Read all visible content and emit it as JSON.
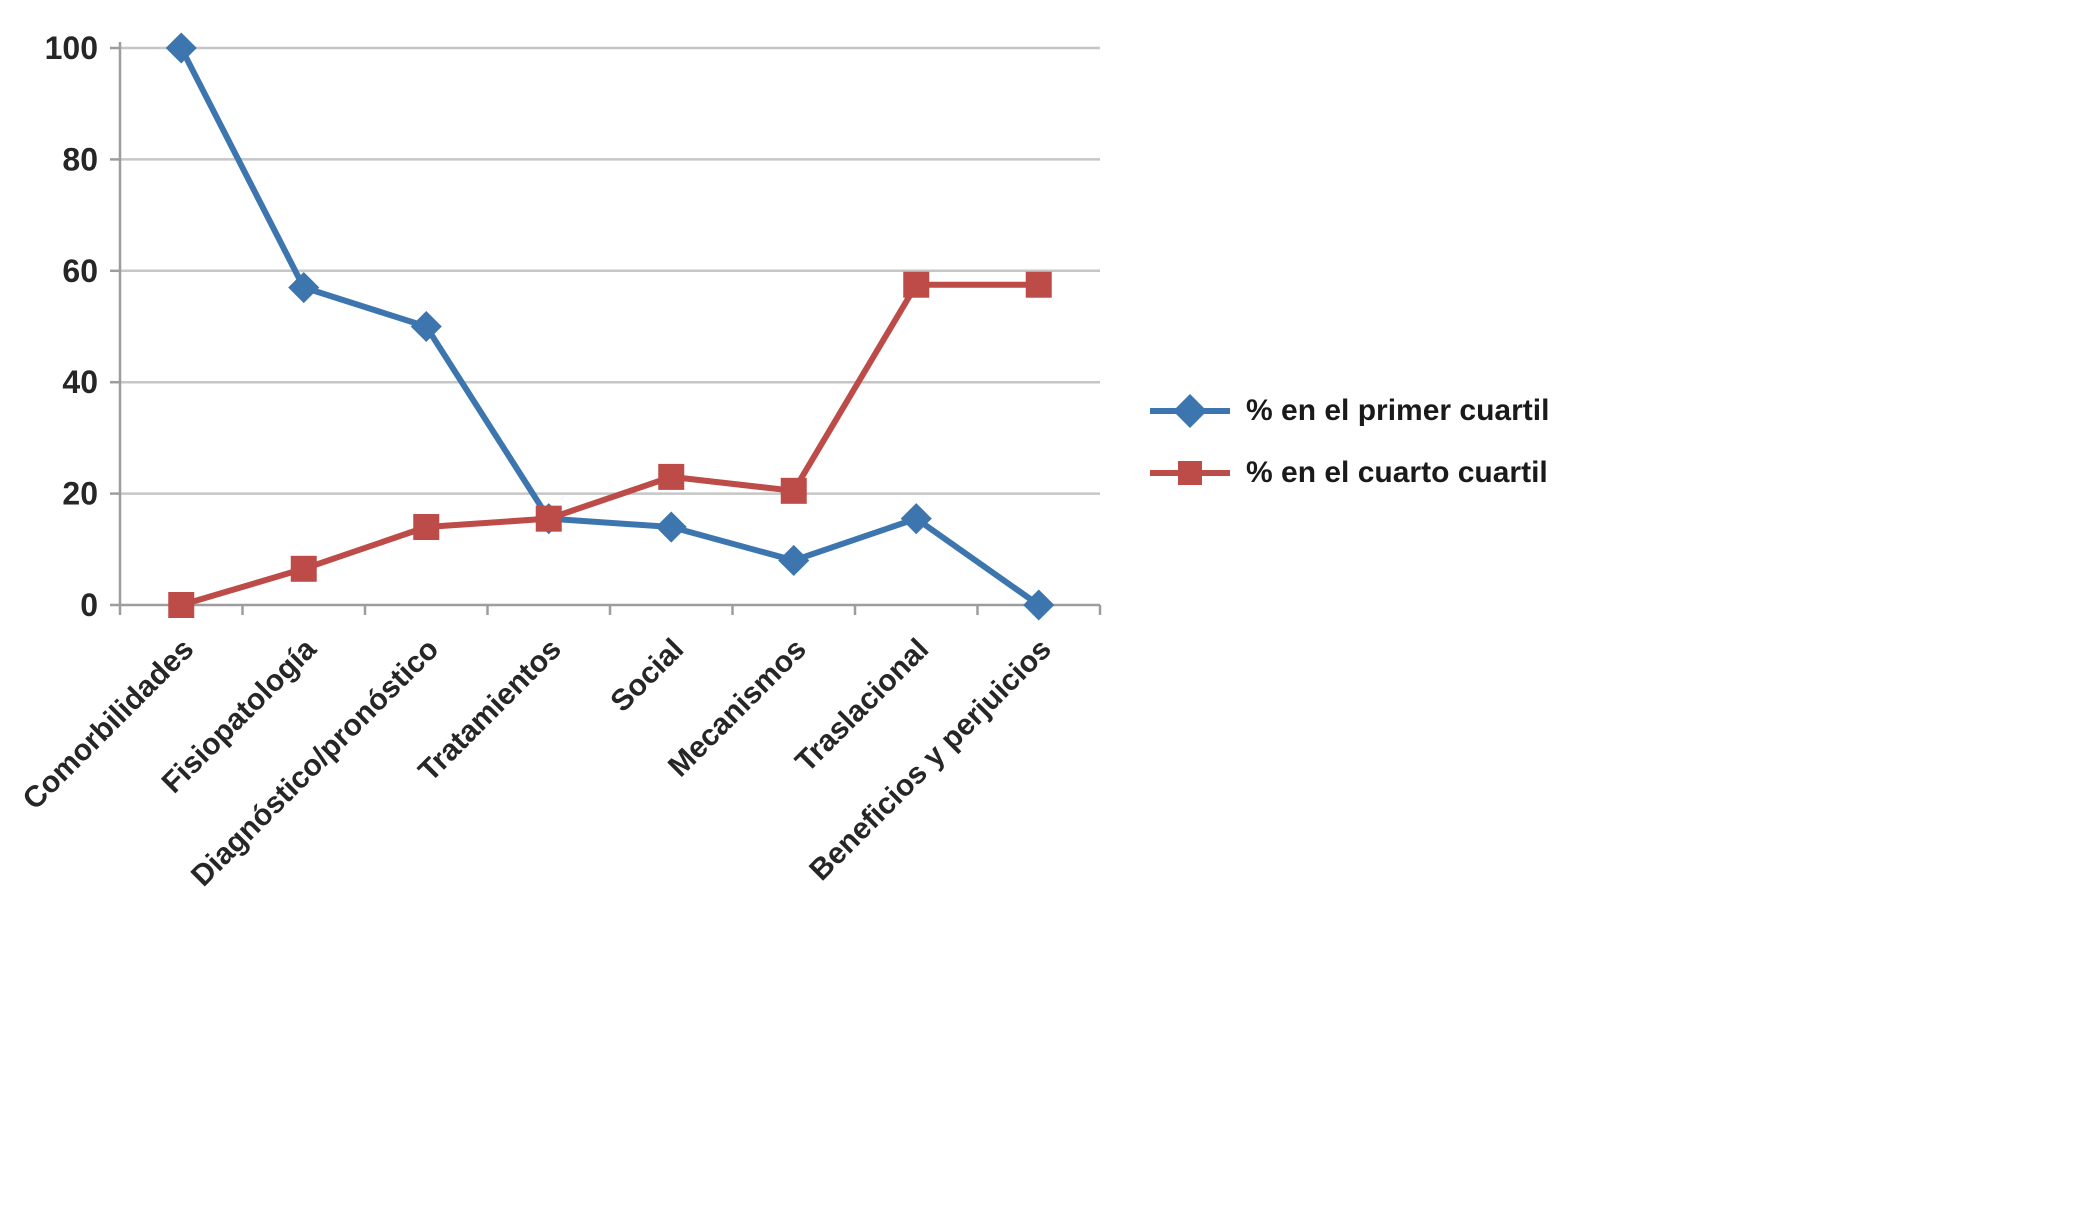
{
  "chart_data": {
    "type": "line",
    "categories": [
      "Comorbilidades",
      "Fisiopatología",
      "Diagnóstico/pronóstico",
      "Tratamientos",
      "Social",
      "Mecanismos",
      "Traslacional",
      "Beneficios y perjuicios"
    ],
    "series": [
      {
        "name": "% en el primer cuartil",
        "color": "#3D76AE",
        "marker": "diamond",
        "values": [
          100,
          57,
          50,
          15.5,
          14,
          8,
          15.5,
          0
        ]
      },
      {
        "name": "% en el cuarto cuartil",
        "color": "#BD4B48",
        "marker": "square",
        "values": [
          0,
          6.5,
          14,
          15.5,
          23,
          20.5,
          57.5,
          57.5
        ]
      }
    ],
    "title": "",
    "xlabel": "",
    "ylabel": "",
    "ylim": [
      0,
      100
    ],
    "yticks": [
      0,
      20,
      40,
      60,
      80,
      100
    ],
    "grid": true,
    "legend_position": "right"
  },
  "style": {
    "gridline_color": "#C6C6C6",
    "axis_color": "#9D9D9D",
    "tick_label_color": "#262626"
  }
}
